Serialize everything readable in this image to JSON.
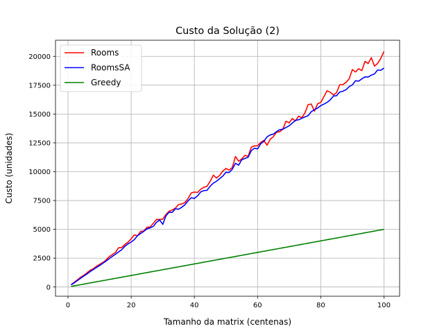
{
  "chart_data": {
    "type": "line",
    "title": "Custo da Solução (2)",
    "xlabel": "Tamanho da matrix (centenas)",
    "ylabel": "Custo (unidades)",
    "xlim": [
      -3.95,
      104.95
    ],
    "ylim": [
      -800,
      21400
    ],
    "xticks": [
      0,
      20,
      40,
      60,
      80,
      100
    ],
    "xtick_labels": [
      "0",
      "20",
      "40",
      "60",
      "80",
      "100"
    ],
    "yticks": [
      0,
      2500,
      5000,
      7500,
      10000,
      12500,
      15000,
      17500,
      20000
    ],
    "ytick_labels": [
      "0",
      "2500",
      "5000",
      "7500",
      "10000",
      "12500",
      "15000",
      "17500",
      "20000"
    ],
    "grid": true,
    "legend": "upper left",
    "x": [
      1,
      2,
      3,
      4,
      5,
      6,
      7,
      8,
      9,
      10,
      11,
      12,
      13,
      14,
      15,
      16,
      17,
      18,
      19,
      20,
      21,
      22,
      23,
      24,
      25,
      26,
      27,
      28,
      29,
      30,
      31,
      32,
      33,
      34,
      35,
      36,
      37,
      38,
      39,
      40,
      41,
      42,
      43,
      44,
      45,
      46,
      47,
      48,
      49,
      50,
      51,
      52,
      53,
      54,
      55,
      56,
      57,
      58,
      59,
      60,
      61,
      62,
      63,
      64,
      65,
      66,
      67,
      68,
      69,
      70,
      71,
      72,
      73,
      74,
      75,
      76,
      77,
      78,
      79,
      80,
      81,
      82,
      83,
      84,
      85,
      86,
      87,
      88,
      89,
      90,
      91,
      92,
      93,
      94,
      95,
      96,
      97,
      98,
      99,
      100
    ],
    "series": [
      {
        "name": "Rooms",
        "color": "#ff0000",
        "values": [
          210,
          420,
          630,
          850,
          1020,
          1220,
          1450,
          1580,
          1800,
          1960,
          2120,
          2330,
          2620,
          2810,
          2990,
          3410,
          3420,
          3680,
          3890,
          4180,
          4520,
          4440,
          4830,
          4860,
          5180,
          5200,
          5520,
          5860,
          5850,
          5880,
          6290,
          6570,
          6680,
          6840,
          7150,
          7200,
          7320,
          7680,
          8150,
          8240,
          8200,
          8480,
          8650,
          8730,
          9170,
          9700,
          9450,
          9680,
          10050,
          10280,
          10140,
          10360,
          11320,
          10910,
          11110,
          11420,
          11320,
          12120,
          12240,
          12250,
          12540,
          12720,
          12300,
          12810,
          13050,
          13420,
          13470,
          13680,
          14380,
          14240,
          14610,
          14400,
          14820,
          14680,
          15100,
          15820,
          15860,
          15250,
          15890,
          16010,
          16510,
          17020,
          16890,
          16660,
          16850,
          17550,
          17550,
          17750,
          18060,
          18860,
          18650,
          18930,
          18770,
          19570,
          19380,
          19890,
          19160,
          19390,
          19830,
          20420
        ]
      },
      {
        "name": "RoomsSA",
        "color": "#0000ff",
        "values": [
          180,
          370,
          560,
          760,
          950,
          1130,
          1330,
          1510,
          1690,
          1860,
          2050,
          2240,
          2450,
          2650,
          2840,
          3040,
          3230,
          3530,
          3740,
          3900,
          4110,
          4450,
          4640,
          4830,
          5040,
          5130,
          5250,
          5610,
          5820,
          5430,
          6170,
          6490,
          6470,
          6790,
          6740,
          6920,
          7130,
          7470,
          7740,
          7680,
          7900,
          8250,
          8360,
          8380,
          8740,
          9010,
          9170,
          9400,
          9620,
          9950,
          9930,
          10210,
          10730,
          10560,
          11040,
          11150,
          11250,
          11820,
          12040,
          11970,
          12420,
          12640,
          13020,
          13190,
          13260,
          13470,
          13640,
          13690,
          13830,
          13980,
          14220,
          14460,
          14500,
          14630,
          14750,
          14860,
          15200,
          15380,
          15520,
          15730,
          15860,
          16010,
          16230,
          16560,
          16590,
          16910,
          16980,
          17110,
          17380,
          17530,
          17890,
          17850,
          18050,
          18220,
          18210,
          18370,
          18480,
          18820,
          18790,
          18990
        ]
      },
      {
        "name": "Greedy",
        "color": "#008000",
        "values": [
          50,
          100,
          150,
          200,
          250,
          300,
          350,
          400,
          450,
          500,
          550,
          600,
          650,
          700,
          750,
          800,
          850,
          900,
          950,
          1000,
          1050,
          1100,
          1150,
          1200,
          1250,
          1300,
          1350,
          1400,
          1450,
          1500,
          1550,
          1600,
          1650,
          1700,
          1750,
          1800,
          1850,
          1900,
          1950,
          2000,
          2050,
          2100,
          2150,
          2200,
          2250,
          2300,
          2350,
          2400,
          2450,
          2500,
          2550,
          2600,
          2650,
          2700,
          2750,
          2800,
          2850,
          2900,
          2950,
          3000,
          3050,
          3100,
          3150,
          3200,
          3250,
          3300,
          3350,
          3400,
          3450,
          3500,
          3550,
          3600,
          3650,
          3700,
          3750,
          3800,
          3850,
          3900,
          3950,
          4000,
          4050,
          4100,
          4150,
          4200,
          4250,
          4300,
          4350,
          4400,
          4450,
          4500,
          4550,
          4600,
          4650,
          4700,
          4750,
          4800,
          4850,
          4900,
          4950,
          5000
        ]
      }
    ]
  }
}
